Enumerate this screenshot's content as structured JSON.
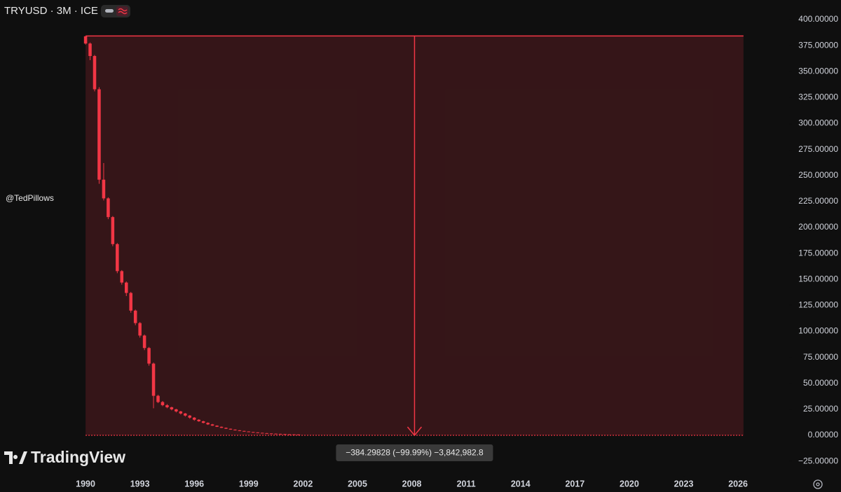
{
  "chart_data": {
    "type": "candlestick",
    "title": "TRYUSD · 3M · ICE",
    "watermark": "@TedPillows",
    "brand": "TradingView",
    "color": "#f23645",
    "x": [
      1990,
      1990.25,
      1990.5,
      1990.75,
      1991,
      1991.25,
      1991.5,
      1991.75,
      1992,
      1992.25,
      1992.5,
      1992.75,
      1993,
      1993.25,
      1993.5,
      1993.75,
      1994,
      1994.25,
      1994.5,
      1994.75,
      1995,
      1995.25,
      1995.5,
      1995.75,
      1996,
      1996.25,
      1996.5,
      1996.75,
      1997,
      1997.25,
      1997.5,
      1997.75,
      1998,
      1998.25,
      1998.5,
      1998.75,
      1999,
      1999.25,
      1999.5,
      1999.75,
      2000,
      2000.25,
      2000.5,
      2000.75,
      2001,
      2001.25,
      2001.5,
      2001.75
    ],
    "open": [
      384,
      377,
      365,
      333,
      246,
      228,
      210,
      184,
      158,
      147,
      137,
      120,
      108,
      96,
      84,
      69,
      38,
      32,
      29,
      27,
      25,
      23,
      21,
      19,
      17,
      15,
      13.5,
      12,
      10.5,
      9.3,
      8.2,
      7.2,
      6.3,
      5.5,
      4.8,
      4.2,
      3.7,
      3.2,
      2.8,
      2.4,
      2.1,
      1.8,
      1.6,
      1.4,
      1.2,
      1.0,
      0.9,
      0.8
    ],
    "high": [
      384,
      378,
      366,
      335,
      262,
      229,
      211,
      185,
      159,
      148,
      138,
      121,
      109,
      97,
      85,
      70,
      39,
      33,
      30,
      27.5,
      25.5,
      23.5,
      21.5,
      19.5,
      17.5,
      15.5,
      14,
      12.5,
      11,
      9.6,
      8.5,
      7.5,
      6.5,
      5.7,
      5,
      4.4,
      3.8,
      3.3,
      2.9,
      2.5,
      2.2,
      1.9,
      1.7,
      1.5,
      1.3,
      1.1,
      0.95,
      0.85
    ],
    "low": [
      376,
      361,
      331,
      242,
      226,
      208,
      182,
      156,
      145,
      134,
      118,
      106,
      94,
      82,
      67,
      26,
      31,
      28,
      26,
      24,
      22,
      20,
      18,
      16,
      14,
      13,
      11.5,
      10,
      9,
      8,
      7,
      6.1,
      5.3,
      4.6,
      4,
      3.5,
      3.1,
      2.7,
      2.3,
      2,
      1.7,
      1.5,
      1.3,
      1.1,
      0.95,
      0.85,
      0.75,
      0.65
    ],
    "close": [
      377,
      365,
      333,
      246,
      228,
      210,
      184,
      158,
      147,
      137,
      120,
      108,
      96,
      84,
      69,
      38,
      32,
      29,
      27,
      25,
      23,
      21,
      19,
      17,
      15,
      13.5,
      12,
      10.5,
      9.3,
      8.2,
      7.2,
      6.3,
      5.5,
      4.8,
      4.2,
      3.7,
      3.2,
      2.8,
      2.4,
      2.1,
      1.8,
      1.6,
      1.4,
      1.2,
      1.0,
      0.9,
      0.8,
      0.7
    ],
    "xlim": [
      1985.28,
      2028.78
    ],
    "xticks": [
      1990,
      1993,
      1996,
      1999,
      2002,
      2005,
      2008,
      2011,
      2014,
      2017,
      2020,
      2023,
      2026
    ],
    "ylim": [
      -35.7,
      418.9
    ],
    "yticks": [
      {
        "value": 400,
        "label": "400.00000"
      },
      {
        "value": 375,
        "label": "375.00000"
      },
      {
        "value": 350,
        "label": "350.00000"
      },
      {
        "value": 325,
        "label": "325.00000"
      },
      {
        "value": 300,
        "label": "300.00000"
      },
      {
        "value": 275,
        "label": "275.00000"
      },
      {
        "value": 250,
        "label": "250.00000"
      },
      {
        "value": 225,
        "label": "225.00000"
      },
      {
        "value": 200,
        "label": "200.00000"
      },
      {
        "value": 175,
        "label": "175.00000"
      },
      {
        "value": 150,
        "label": "150.00000"
      },
      {
        "value": 125,
        "label": "125.00000"
      },
      {
        "value": 100,
        "label": "100.00000"
      },
      {
        "value": 75,
        "label": "75.00000"
      },
      {
        "value": 50,
        "label": "50.00000"
      },
      {
        "value": 25,
        "label": "25.00000"
      },
      {
        "value": 0,
        "label": "0.00000"
      },
      {
        "value": -25,
        "label": "−25.00000"
      }
    ],
    "measure": {
      "x": [
        1990,
        2026.3
      ],
      "y": [
        384.29828,
        0
      ],
      "label": "−384.29828 (−99.99%) −3,842,982.8"
    }
  }
}
